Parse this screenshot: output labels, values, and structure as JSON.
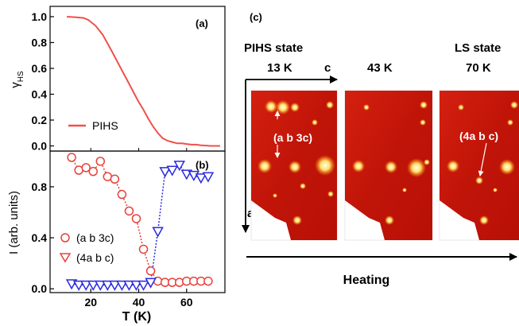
{
  "chart_data": [
    {
      "type": "line",
      "panel_label": "(a)",
      "ylabel": "γ",
      "ylabel_sub": "HS",
      "xlim": [
        3,
        76
      ],
      "ylim": [
        -0.04,
        1.08
      ],
      "yticks": [
        "1.0",
        "0.8",
        "0.6",
        "0.4",
        "0.2",
        "0.0"
      ],
      "ytick_values": [
        1.0,
        0.8,
        0.6,
        0.4,
        0.2,
        0.0
      ],
      "legend": "PIHS",
      "legend_placement": "bottom-left",
      "color": "#f0504a",
      "series": [
        {
          "name": "PIHS",
          "x": [
            10,
            14,
            17,
            19,
            22,
            25,
            28,
            30,
            32,
            34,
            36,
            38,
            40,
            42,
            44,
            46,
            48,
            50,
            52,
            54,
            56,
            58,
            60,
            62,
            64,
            66,
            70,
            74
          ],
          "y": [
            1.0,
            0.995,
            0.99,
            0.975,
            0.93,
            0.86,
            0.76,
            0.69,
            0.62,
            0.55,
            0.48,
            0.41,
            0.34,
            0.28,
            0.21,
            0.15,
            0.1,
            0.06,
            0.04,
            0.03,
            0.02,
            0.02,
            0.015,
            0.01,
            0.01,
            0.005,
            0.0,
            0.0
          ]
        }
      ]
    },
    {
      "type": "scatter",
      "panel_label": "(b)",
      "ylabel": "I (arb. units)",
      "xlabel": "T (K)",
      "xlim": [
        3,
        76
      ],
      "ylim": [
        -0.03,
        1.08
      ],
      "xticks": [
        "20",
        "40",
        "60"
      ],
      "xtick_values": [
        20,
        40,
        60
      ],
      "yticks": [
        "0.8",
        "0.4",
        "0.0"
      ],
      "ytick_values": [
        0.8,
        0.4,
        0.0
      ],
      "legend_placement": "bottom-left",
      "series": [
        {
          "name": "(a b 3c)",
          "marker": "circle",
          "color": "#e8403a",
          "x": [
            12,
            15,
            18,
            21,
            24,
            27,
            30,
            33,
            36,
            39,
            42,
            45,
            48,
            51,
            54,
            57,
            60,
            63,
            66,
            69
          ],
          "y": [
            1.03,
            0.93,
            0.95,
            0.92,
            1.0,
            0.88,
            0.86,
            0.74,
            0.61,
            0.55,
            0.31,
            0.14,
            0.06,
            0.05,
            0.05,
            0.05,
            0.06,
            0.06,
            0.06,
            0.06
          ]
        },
        {
          "name": "(4a b c)",
          "marker": "triangle-down",
          "color": "#2a2ae0",
          "legend_marker_color": "#e8403a",
          "x": [
            12,
            15,
            18,
            21,
            24,
            27,
            30,
            33,
            36,
            39,
            42,
            45,
            48,
            51,
            54,
            57,
            60,
            63,
            66,
            69
          ],
          "y": [
            0.04,
            0.03,
            0.03,
            0.03,
            0.03,
            0.03,
            0.03,
            0.03,
            0.03,
            0.03,
            0.03,
            0.05,
            0.45,
            0.92,
            0.93,
            0.97,
            0.9,
            0.89,
            0.87,
            0.88
          ]
        }
      ]
    }
  ],
  "panel_c": {
    "label": "(c)",
    "state_left": "PIHS state",
    "state_right": "LS state",
    "temperatures": [
      "13 K",
      "43 K",
      "70 K"
    ],
    "axis_c_label": "c",
    "axis_a_label": "a",
    "annot_left": "(a b 3c)",
    "annot_right": "(4a b c)",
    "heating_label": "Heating"
  }
}
